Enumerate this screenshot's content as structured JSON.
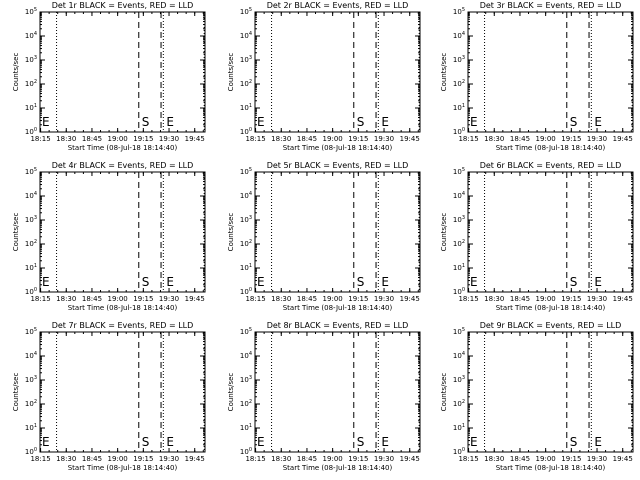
{
  "chart_data": [
    {
      "type": "line",
      "title": "Det 1r BLACK = Events, RED = LLD",
      "xlabel": "Start Time (08-Jul-18 18:14:40)",
      "ylabel": "Counts/sec",
      "xticks": [
        "18:15",
        "18:30",
        "18:45",
        "19:00",
        "19:15",
        "19:30",
        "19:45"
      ],
      "yticks_exp": [
        "0",
        "1",
        "2",
        "3",
        "4",
        "5"
      ],
      "ylim": [
        1,
        100000
      ],
      "markers": [
        {
          "label": "E",
          "x": "18:15"
        },
        {
          "label": "S",
          "x": "19:15"
        },
        {
          "label": "E",
          "x": "19:40"
        }
      ],
      "series": []
    },
    {
      "type": "line",
      "title": "Det 2r BLACK = Events, RED = LLD",
      "xlabel": "Start Time (08-Jul-18 18:14:40)",
      "ylabel": "Counts/sec",
      "xticks": [
        "18:15",
        "18:30",
        "18:45",
        "19:00",
        "19:15",
        "19:30",
        "19:45"
      ],
      "yticks_exp": [
        "0",
        "1",
        "2",
        "3",
        "4",
        "5"
      ],
      "ylim": [
        1,
        100000
      ],
      "markers": [
        {
          "label": "E",
          "x": "18:15"
        },
        {
          "label": "S",
          "x": "19:15"
        },
        {
          "label": "E",
          "x": "19:40"
        }
      ],
      "series": []
    },
    {
      "type": "line",
      "title": "Det 3r BLACK = Events, RED = LLD",
      "xlabel": "Start Time (08-Jul-18 18:14:40)",
      "ylabel": "Counts/sec",
      "xticks": [
        "18:15",
        "18:30",
        "18:45",
        "19:00",
        "19:15",
        "19:30",
        "19:45"
      ],
      "yticks_exp": [
        "0",
        "1",
        "2",
        "3",
        "4",
        "5"
      ],
      "ylim": [
        1,
        100000
      ],
      "markers": [
        {
          "label": "E",
          "x": "18:15"
        },
        {
          "label": "S",
          "x": "19:15"
        },
        {
          "label": "E",
          "x": "19:40"
        }
      ],
      "series": []
    },
    {
      "type": "line",
      "title": "Det 4r BLACK = Events, RED = LLD",
      "xlabel": "Start Time (08-Jul-18 18:14:40)",
      "ylabel": "Counts/sec",
      "xticks": [
        "18:15",
        "18:30",
        "18:45",
        "19:00",
        "19:15",
        "19:30",
        "19:45"
      ],
      "yticks_exp": [
        "0",
        "1",
        "2",
        "3",
        "4",
        "5"
      ],
      "ylim": [
        1,
        100000
      ],
      "markers": [
        {
          "label": "E",
          "x": "18:15"
        },
        {
          "label": "S",
          "x": "19:15"
        },
        {
          "label": "E",
          "x": "19:40"
        }
      ],
      "series": []
    },
    {
      "type": "line",
      "title": "Det 5r BLACK = Events, RED = LLD",
      "xlabel": "Start Time (08-Jul-18 18:14:40)",
      "ylabel": "Counts/sec",
      "xticks": [
        "18:15",
        "18:30",
        "18:45",
        "19:00",
        "19:15",
        "19:30",
        "19:45"
      ],
      "yticks_exp": [
        "0",
        "1",
        "2",
        "3",
        "4",
        "5"
      ],
      "ylim": [
        1,
        100000
      ],
      "markers": [
        {
          "label": "E",
          "x": "18:15"
        },
        {
          "label": "S",
          "x": "19:15"
        },
        {
          "label": "E",
          "x": "19:40"
        }
      ],
      "series": []
    },
    {
      "type": "line",
      "title": "Det 6r BLACK = Events, RED = LLD",
      "xlabel": "Start Time (08-Jul-18 18:14:40)",
      "ylabel": "Counts/sec",
      "xticks": [
        "18:15",
        "18:30",
        "18:45",
        "19:00",
        "19:15",
        "19:30",
        "19:45"
      ],
      "yticks_exp": [
        "0",
        "1",
        "2",
        "3",
        "4",
        "5"
      ],
      "ylim": [
        1,
        100000
      ],
      "markers": [
        {
          "label": "E",
          "x": "18:15"
        },
        {
          "label": "S",
          "x": "19:15"
        },
        {
          "label": "E",
          "x": "19:40"
        }
      ],
      "series": []
    },
    {
      "type": "line",
      "title": "Det 7r BLACK = Events, RED = LLD",
      "xlabel": "Start Time (08-Jul-18 18:14:40)",
      "ylabel": "Counts/sec",
      "xticks": [
        "18:15",
        "18:30",
        "18:45",
        "19:00",
        "19:15",
        "19:30",
        "19:45"
      ],
      "yticks_exp": [
        "0",
        "1",
        "2",
        "3",
        "4",
        "5"
      ],
      "ylim": [
        1,
        100000
      ],
      "markers": [
        {
          "label": "E",
          "x": "18:15"
        },
        {
          "label": "S",
          "x": "19:15"
        },
        {
          "label": "E",
          "x": "19:40"
        }
      ],
      "series": []
    },
    {
      "type": "line",
      "title": "Det 8r BLACK = Events, RED = LLD",
      "xlabel": "Start Time (08-Jul-18 18:14:40)",
      "ylabel": "Counts/sec",
      "xticks": [
        "18:15",
        "18:30",
        "18:45",
        "19:00",
        "19:15",
        "19:30",
        "19:45"
      ],
      "yticks_exp": [
        "0",
        "1",
        "2",
        "3",
        "4",
        "5"
      ],
      "ylim": [
        1,
        100000
      ],
      "markers": [
        {
          "label": "E",
          "x": "18:15"
        },
        {
          "label": "S",
          "x": "19:15"
        },
        {
          "label": "E",
          "x": "19:40"
        }
      ],
      "series": []
    },
    {
      "type": "line",
      "title": "Det 9r BLACK = Events, RED = LLD",
      "xlabel": "Start Time (08-Jul-18 18:14:40)",
      "ylabel": "Counts/sec",
      "xticks": [
        "18:15",
        "18:30",
        "18:45",
        "19:00",
        "19:15",
        "19:30",
        "19:45"
      ],
      "yticks_exp": [
        "0",
        "1",
        "2",
        "3",
        "4",
        "5"
      ],
      "ylim": [
        1,
        100000
      ],
      "markers": [
        {
          "label": "E",
          "x": "18:15"
        },
        {
          "label": "S",
          "x": "19:15"
        },
        {
          "label": "E",
          "x": "19:40"
        }
      ],
      "series": []
    }
  ],
  "style": {
    "axis_color": "#000000",
    "background": "#ffffff",
    "events_color": "#000000",
    "lld_color": "#ff0000",
    "y_scale": "log",
    "y_base": "10"
  }
}
